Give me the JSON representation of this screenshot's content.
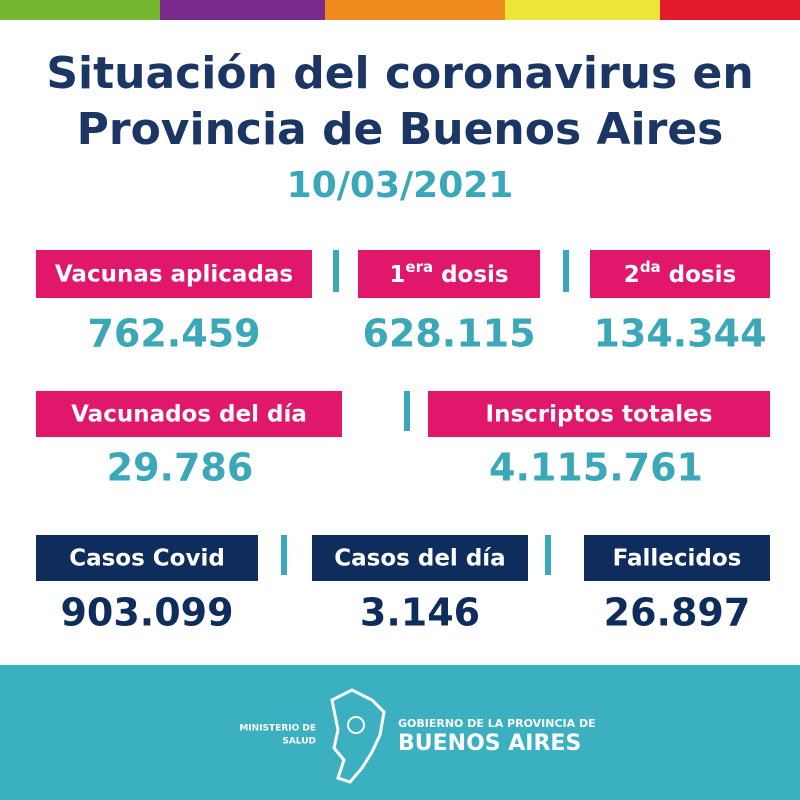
{
  "header": {
    "title_line1": "Situación del coronavirus en",
    "title_line2": "Provincia de Buenos Aires",
    "date": "10/03/2021"
  },
  "stats": {
    "row1": [
      {
        "label": "Vacunas aplicadas",
        "value": "762.459"
      },
      {
        "label": {
          "num": "1",
          "sup": "era",
          "rest": "dosis"
        },
        "value": "628.115"
      },
      {
        "label": {
          "num": "2",
          "sup": "da",
          "rest": "dosis"
        },
        "value": "134.344"
      }
    ],
    "row2": [
      {
        "label": "Vacunados del día",
        "value": "29.786"
      },
      {
        "label": "Inscriptos totales",
        "value": "4.115.761"
      }
    ],
    "row3": [
      {
        "label": "Casos Covid",
        "value": "903.099"
      },
      {
        "label": "Casos del día",
        "value": "3.146"
      },
      {
        "label": "Fallecidos",
        "value": "26.897"
      }
    ]
  },
  "footer": {
    "ministry_line1": "MINISTERIO DE",
    "ministry_line2": "SALUD",
    "gov_line1": "GOBIERNO DE LA PROVINCIA DE",
    "gov_line2": "BUENOS AIRES"
  }
}
